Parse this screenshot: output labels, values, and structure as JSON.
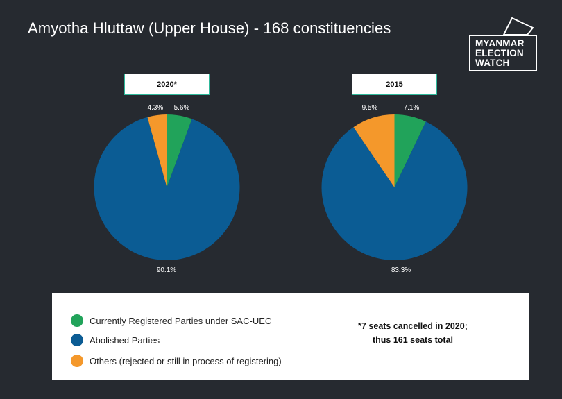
{
  "title": "Amyotha Hluttaw (Upper House) - 168 constituencies",
  "logo": {
    "line1": "MYANMAR",
    "line2": "ELECTION",
    "line3": "WATCH"
  },
  "colors": {
    "registered": "#21a35a",
    "abolished": "#0b5c94",
    "others": "#f4982b"
  },
  "chart_data": [
    {
      "type": "pie",
      "title": "2020*",
      "slices": [
        {
          "label": "Currently Registered Parties under SAC-UEC",
          "value": 5.6,
          "text": "5.6%",
          "color": "#21a35a"
        },
        {
          "label": "Abolished Parties",
          "value": 90.1,
          "text": "90.1%",
          "color": "#0b5c94"
        },
        {
          "label": "Others (rejected or still in process of registering)",
          "value": 4.3,
          "text": "4.3%",
          "color": "#f4982b"
        }
      ]
    },
    {
      "type": "pie",
      "title": "2015",
      "slices": [
        {
          "label": "Currently Registered Parties under SAC-UEC",
          "value": 7.1,
          "text": "7.1%",
          "color": "#21a35a"
        },
        {
          "label": "Abolished Parties",
          "value": 83.3,
          "text": "83.3%",
          "color": "#0b5c94"
        },
        {
          "label": "Others (rejected or still in process of registering)",
          "value": 9.5,
          "text": "9.5%",
          "color": "#f4982b"
        }
      ]
    }
  ],
  "legend": {
    "items": [
      {
        "label": "Currently Registered Parties under SAC-UEC",
        "color": "#21a35a"
      },
      {
        "label": "Abolished Parties",
        "color": "#0b5c94"
      },
      {
        "label": "Others (rejected or still in process of registering)",
        "color": "#f4982b"
      }
    ],
    "note_line1": "*7 seats cancelled in 2020;",
    "note_line2": "thus 161 seats total"
  }
}
